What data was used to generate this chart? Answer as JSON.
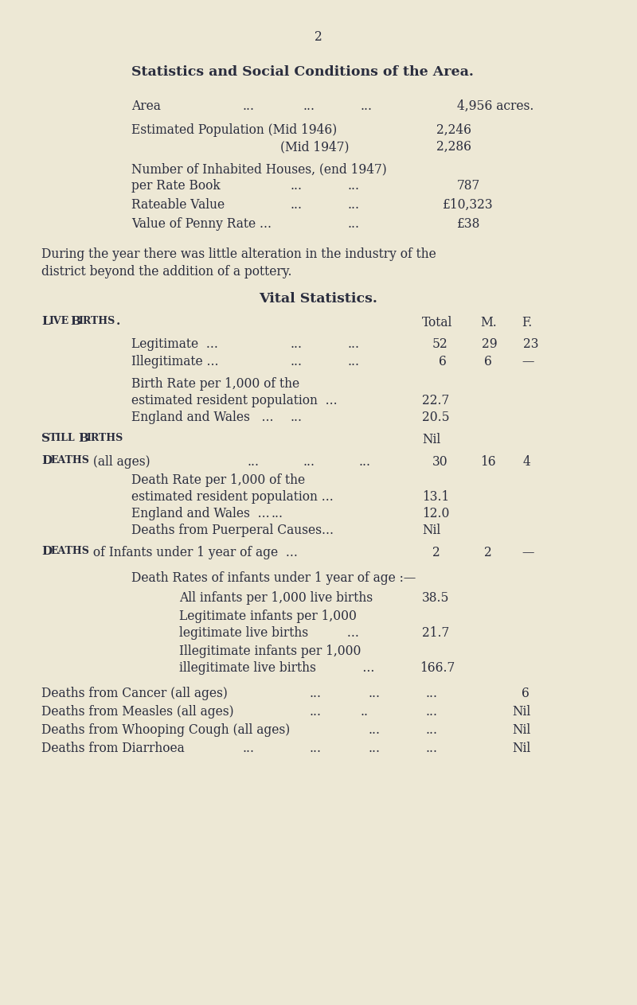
{
  "bg_color": "#ede8d5",
  "text_color": "#2a2d3e",
  "page_number": "2",
  "title": "Statistics and Social Conditions of the Area.",
  "para1": "During the year there was little alteration in the industry of the",
  "para2": "district beyond the addition of a pottery.",
  "vital_title": "Vital Statistics."
}
